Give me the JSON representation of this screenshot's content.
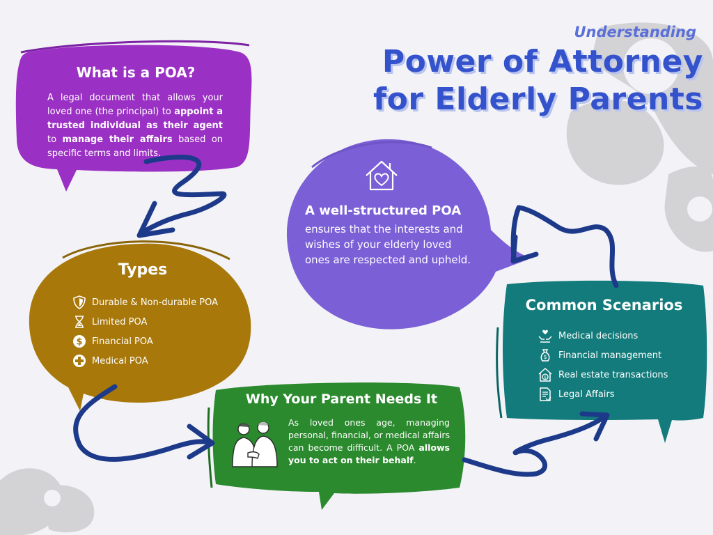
{
  "header": {
    "kicker": "Understanding",
    "title_line1": "Power of Attorney",
    "title_line2": "for Elderly Parents"
  },
  "poa": {
    "heading": "What is a POA?",
    "body_1": "A legal document that allows your loved one (the principal) to ",
    "body_bold_1": "appoint a trusted individual as their agent",
    "body_2": " to ",
    "body_bold_2": "manage their affairs",
    "body_3": " based on specific terms and limits."
  },
  "types": {
    "heading": "Types",
    "items": [
      {
        "label": "Durable & Non-durable POA",
        "icon": "shield-icon"
      },
      {
        "label": "Limited POA",
        "icon": "hourglass-icon"
      },
      {
        "label": "Financial POA",
        "icon": "dollar-coin-icon"
      },
      {
        "label": "Medical POA",
        "icon": "medical-cross-icon"
      }
    ]
  },
  "well_structured": {
    "icon": "house-heart-icon",
    "heading": "A well-structured POA",
    "body": "ensures that the interests and wishes of your elderly loved ones are respected and upheld."
  },
  "scenarios": {
    "heading": "Common Scenarios",
    "items": [
      {
        "label": "Medical decisions",
        "icon": "medical-hands-icon"
      },
      {
        "label": "Financial management",
        "icon": "money-bag-icon"
      },
      {
        "label": "Real estate transactions",
        "icon": "house-dollar-icon"
      },
      {
        "label": "Legal Affairs",
        "icon": "legal-document-icon"
      }
    ]
  },
  "why": {
    "heading": "Why Your Parent Needs It",
    "body": "As loved ones age, managing personal, financial, or medical affairs can become difficult. A POA ",
    "body_bold": "allows you to act on their behalf",
    "body_end": ".",
    "illustration": "parent-and-child-illustration"
  },
  "colors": {
    "poa": "#9b30c4",
    "types": "#a8780a",
    "well_structured": "#7b5fd6",
    "scenarios": "#137b7b",
    "why": "#2b8a2e",
    "arrow": "#1d3a8a",
    "title": "#3352cc"
  }
}
